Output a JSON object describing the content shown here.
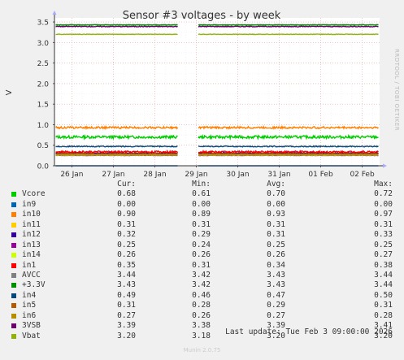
{
  "chart_data": {
    "type": "line",
    "title": "Sensor #3 voltages - by week",
    "ylabel": "V",
    "side_label": "RRDTOOL / TOBI OETIKER",
    "ylim": [
      0,
      3.6
    ],
    "yticks": [
      "0.0",
      "0.5",
      "1.0",
      "1.5",
      "2.0",
      "2.5",
      "3.0",
      "3.5"
    ],
    "ytick_values": [
      0,
      0.5,
      1.0,
      1.5,
      2.0,
      2.5,
      3.0,
      3.5
    ],
    "xticks": [
      "26 Jan",
      "27 Jan",
      "28 Jan",
      "29 Jan",
      "30 Jan",
      "31 Jan",
      "01 Feb",
      "02 Feb"
    ],
    "xtick_days": [
      0,
      1,
      2,
      3,
      4,
      5,
      6,
      7
    ],
    "xrange_days": [
      -0.42,
      7.42
    ],
    "gap_days": [
      2.55,
      3.05
    ],
    "grid": true,
    "series": [
      {
        "name": "Vcore",
        "color": "#00cc00",
        "cur": "0.68",
        "min": "0.61",
        "avg": "0.70",
        "max": "0.72",
        "value": 0.7
      },
      {
        "name": "in9",
        "color": "#0066b3",
        "cur": "0.00",
        "min": "0.00",
        "avg": "0.00",
        "max": "0.00",
        "value": 0.0
      },
      {
        "name": "in10",
        "color": "#ff8000",
        "cur": "0.90",
        "min": "0.89",
        "avg": "0.93",
        "max": "0.97",
        "value": 0.93
      },
      {
        "name": "in11",
        "color": "#ffcc00",
        "cur": "0.31",
        "min": "0.31",
        "avg": "0.31",
        "max": "0.31",
        "value": 0.31
      },
      {
        "name": "in12",
        "color": "#330099",
        "cur": "0.32",
        "min": "0.29",
        "avg": "0.31",
        "max": "0.33",
        "value": 0.31
      },
      {
        "name": "in13",
        "color": "#990099",
        "cur": "0.25",
        "min": "0.24",
        "avg": "0.25",
        "max": "0.25",
        "value": 0.25
      },
      {
        "name": "in14",
        "color": "#ccff00",
        "cur": "0.26",
        "min": "0.26",
        "avg": "0.26",
        "max": "0.27",
        "value": 0.26
      },
      {
        "name": "in1",
        "color": "#ff0000",
        "cur": "0.35",
        "min": "0.31",
        "avg": "0.34",
        "max": "0.38",
        "value": 0.34
      },
      {
        "name": "AVCC",
        "color": "#808080",
        "cur": "3.44",
        "min": "3.42",
        "avg": "3.43",
        "max": "3.44",
        "value": 3.43
      },
      {
        "name": "+3.3V",
        "color": "#008f00",
        "cur": "3.43",
        "min": "3.42",
        "avg": "3.43",
        "max": "3.44",
        "value": 3.43
      },
      {
        "name": "in4",
        "color": "#00487d",
        "cur": "0.49",
        "min": "0.46",
        "avg": "0.47",
        "max": "0.50",
        "value": 0.47
      },
      {
        "name": "in5",
        "color": "#b35a00",
        "cur": "0.31",
        "min": "0.28",
        "avg": "0.29",
        "max": "0.31",
        "value": 0.29
      },
      {
        "name": "in6",
        "color": "#b38f00",
        "cur": "0.27",
        "min": "0.26",
        "avg": "0.27",
        "max": "0.28",
        "value": 0.27
      },
      {
        "name": "3VSB",
        "color": "#6b006b",
        "cur": "3.39",
        "min": "3.38",
        "avg": "3.39",
        "max": "3.41",
        "value": 3.39
      },
      {
        "name": "Vbat",
        "color": "#8fb300",
        "cur": "3.20",
        "min": "3.18",
        "avg": "3.20",
        "max": "3.20",
        "value": 3.2
      }
    ]
  },
  "legend": {
    "cur": "Cur:",
    "min": "Min:",
    "avg": "Avg:",
    "max": "Max:"
  },
  "last_update": "Last update: Tue Feb  3 09:00:00 2026",
  "footer": "Munin 2.0.75"
}
